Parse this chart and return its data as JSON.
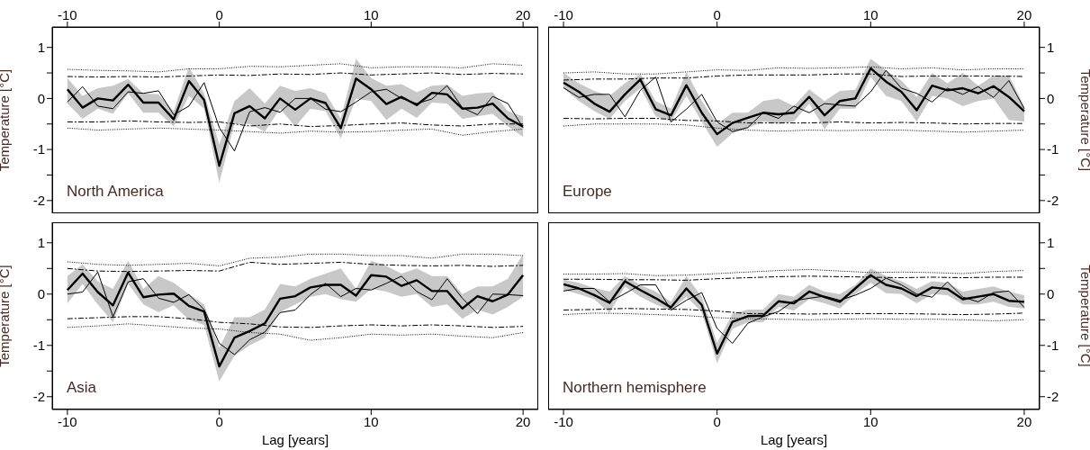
{
  "chart_data": [
    {
      "type": "line",
      "title": "North America",
      "ylabel": "Temperature [°C]",
      "xlim": [
        -11,
        21
      ],
      "x2lim": [
        -11,
        21
      ],
      "x2ticks": [
        -10,
        0,
        10,
        20
      ],
      "ylim": [
        -2.25,
        1.4
      ],
      "yticks": [
        -2,
        {
          "value": -1.5,
          "label": null
        },
        -1,
        {
          "value": -0.5,
          "label": null
        },
        0,
        {
          "value": 0.5,
          "label": null
        },
        1
      ],
      "x": [
        -10,
        -9,
        -8,
        -7,
        -6,
        -5,
        -4,
        -3,
        -2,
        -1,
        0,
        1,
        2,
        3,
        4,
        5,
        6,
        7,
        8,
        9,
        10,
        11,
        12,
        13,
        14,
        15,
        16,
        17,
        18,
        19,
        20
      ],
      "series": [
        {
          "color": "#000000",
          "values": [
            0.18,
            -0.18,
            0,
            -0.04,
            0.27,
            -0.08,
            -0.08,
            -0.41,
            0.34,
            -0.03,
            -1.32,
            -0.29,
            -0.15,
            -0.39,
            0,
            -0.22,
            0,
            -0.09,
            -0.58,
            0.39,
            0.18,
            -0.11,
            0.03,
            -0.13,
            0.11,
            0.08,
            -0.2,
            -0.18,
            -0.1,
            -0.39,
            -0.55
          ],
          "lower": [
            -0.1,
            -0.4,
            -0.2,
            -0.3,
            0.1,
            -0.28,
            -0.28,
            -0.55,
            0.05,
            -0.2,
            -1.65,
            -0.5,
            -0.5,
            -0.65,
            -0.2,
            -0.55,
            -0.2,
            -0.25,
            -0.78,
            0.0,
            -0.05,
            -0.42,
            -0.2,
            -0.38,
            -0.08,
            -0.1,
            -0.4,
            -0.35,
            -0.3,
            -0.55,
            -0.75
          ],
          "upper": [
            0.4,
            0.05,
            0.2,
            0.25,
            0.38,
            0.1,
            0.08,
            -0.25,
            0.62,
            0.1,
            -0.9,
            -0.05,
            0.2,
            -0.1,
            0.25,
            0.15,
            0.2,
            0.1,
            -0.4,
            0.78,
            0.4,
            0.25,
            0.28,
            0.12,
            0.25,
            0.27,
            0.05,
            0.1,
            0.12,
            -0.25,
            -0.35
          ]
        },
        {
          "color": "#000000",
          "values": [
            -0.07,
            0.23,
            -0.15,
            -0.2,
            0.13,
            0.1,
            0.15,
            -0.32,
            -0.15,
            0.31,
            -0.57,
            -1.03,
            -0.26,
            -0.18,
            -0.27,
            0,
            0,
            -0.21,
            -0.26,
            -0.07,
            0.13,
            0.18,
            0,
            -0.1,
            -0.01,
            0.25,
            -0.18,
            -0.32,
            0.04,
            -0.1,
            -0.57
          ]
        },
        {
          "color": "#000000",
          "line_style": "dashed",
          "x": [
            -10,
            -8,
            -6,
            -4,
            -2,
            0,
            2,
            4,
            6,
            8,
            10,
            12,
            14,
            16,
            18,
            20
          ],
          "values": [
            0.43,
            0.42,
            0.43,
            0.42,
            0.44,
            0.46,
            0.45,
            0.48,
            0.47,
            0.5,
            0.46,
            0.48,
            0.5,
            0.47,
            0.49,
            0.48
          ]
        },
        {
          "color": "#000000",
          "line_style": "dashed",
          "x": [
            -10,
            -8,
            -6,
            -4,
            -2,
            0,
            2,
            4,
            6,
            8,
            10,
            12,
            14,
            16,
            18,
            20
          ],
          "values": [
            -0.46,
            -0.46,
            -0.44,
            -0.46,
            -0.47,
            -0.46,
            -0.54,
            -0.5,
            -0.55,
            -0.53,
            -0.5,
            -0.48,
            -0.52,
            -0.54,
            -0.5,
            -0.5
          ]
        },
        {
          "color": "#000000",
          "line_style": "dotted",
          "x": [
            -10,
            -8,
            -6,
            -4,
            -2,
            0,
            2,
            4,
            6,
            8,
            10,
            12,
            14,
            16,
            18,
            20
          ],
          "values": [
            0.57,
            0.55,
            0.54,
            0.52,
            0.58,
            0.58,
            0.63,
            0.62,
            0.65,
            0.68,
            0.6,
            0.62,
            0.62,
            0.6,
            0.68,
            0.65
          ]
        },
        {
          "color": "#000000",
          "line_style": "dotted",
          "x": [
            -10,
            -8,
            -6,
            -4,
            -2,
            0,
            2,
            4,
            6,
            8,
            10,
            12,
            14,
            16,
            18,
            20
          ],
          "values": [
            -0.58,
            -0.62,
            -0.6,
            -0.58,
            -0.6,
            -0.62,
            -0.65,
            -0.68,
            -0.64,
            -0.66,
            -0.65,
            -0.62,
            -0.6,
            -0.72,
            -0.65,
            -0.6
          ]
        }
      ]
    },
    {
      "type": "line",
      "title": "Europe",
      "y2label": "Temperature [°C]",
      "xlim": [
        -11,
        21
      ],
      "x2lim": [
        -11,
        21
      ],
      "x2ticks": [
        -10,
        0,
        10,
        20
      ],
      "y2lim": [
        -2.25,
        1.4
      ],
      "y2ticks": [
        -2,
        {
          "value": -1.5,
          "label": null
        },
        -1,
        {
          "value": -0.5,
          "label": null
        },
        0,
        {
          "value": 0.5,
          "label": null
        },
        1
      ],
      "x": [
        -10,
        -9,
        -8,
        -7,
        -6,
        -5,
        -4,
        -3,
        -2,
        -1,
        0,
        1,
        2,
        3,
        4,
        5,
        6,
        7,
        8,
        9,
        10,
        11,
        12,
        13,
        14,
        15,
        16,
        17,
        18,
        19,
        20
      ],
      "series": [
        {
          "color": "#000000",
          "axis": "y2",
          "values": [
            0.31,
            0.13,
            -0.1,
            -0.26,
            0.08,
            0.37,
            -0.21,
            -0.33,
            0.26,
            -0.28,
            -0.7,
            -0.48,
            -0.38,
            -0.28,
            -0.31,
            -0.28,
            0.03,
            -0.33,
            -0.05,
            0,
            0.59,
            0.33,
            0.13,
            -0.23,
            0.25,
            0.16,
            0.2,
            0.1,
            0.24,
            0.03,
            -0.25
          ],
          "lower": [
            0.2,
            -0.05,
            -0.25,
            -0.4,
            -0.05,
            0.2,
            -0.35,
            -0.45,
            0.05,
            -0.45,
            -0.95,
            -0.68,
            -0.58,
            -0.45,
            -0.5,
            -0.45,
            -0.1,
            -0.6,
            -0.2,
            -0.2,
            0.42,
            0.05,
            -0.05,
            -0.45,
            0.05,
            0.0,
            -0.15,
            -0.05,
            0.0,
            -0.42,
            -0.45
          ],
          "upper": [
            0.5,
            0.3,
            0.15,
            0.05,
            0.3,
            0.48,
            -0.05,
            -0.2,
            0.52,
            -0.05,
            -0.5,
            -0.28,
            -0.28,
            -0.05,
            0.0,
            -0.15,
            0.18,
            -0.05,
            0.15,
            0.17,
            0.78,
            0.55,
            0.35,
            0.03,
            0.5,
            0.3,
            0.5,
            0.25,
            0.45,
            0.45,
            -0.15
          ]
        },
        {
          "color": "#000000",
          "axis": "y2",
          "values": [
            0.21,
            0.02,
            0.08,
            0.08,
            -0.36,
            0.16,
            0.42,
            -0.46,
            -0.21,
            0.08,
            -0.46,
            -0.65,
            -0.57,
            -0.28,
            -0.39,
            -0.15,
            -0.28,
            -0.1,
            -0.13,
            -0.15,
            0.13,
            0.55,
            0.2,
            0.1,
            -0.07,
            0.2,
            0.08,
            0.23,
            0.02,
            0.35,
            -0.2
          ]
        },
        {
          "color": "#000000",
          "axis": "y2",
          "line_style": "dashed",
          "x": [
            -10,
            -8,
            -6,
            -4,
            -2,
            0,
            2,
            4,
            6,
            8,
            10,
            12,
            14,
            16,
            18,
            20
          ],
          "values": [
            0.36,
            0.38,
            0.38,
            0.4,
            0.4,
            0.44,
            0.46,
            0.46,
            0.46,
            0.48,
            0.48,
            0.43,
            0.44,
            0.44,
            0.44,
            0.43
          ]
        },
        {
          "color": "#000000",
          "axis": "y2",
          "line_style": "dashed",
          "x": [
            -10,
            -8,
            -6,
            -4,
            -2,
            0,
            2,
            4,
            6,
            8,
            10,
            12,
            14,
            16,
            18,
            20
          ],
          "values": [
            -0.39,
            -0.4,
            -0.39,
            -0.39,
            -0.43,
            -0.44,
            -0.48,
            -0.48,
            -0.48,
            -0.46,
            -0.48,
            -0.47,
            -0.48,
            -0.5,
            -0.49,
            -0.49
          ]
        },
        {
          "color": "#000000",
          "axis": "y2",
          "line_style": "dotted",
          "x": [
            -10,
            -8,
            -6,
            -4,
            -2,
            0,
            2,
            4,
            6,
            8,
            10,
            12,
            14,
            16,
            18,
            20
          ],
          "values": [
            0.5,
            0.52,
            0.48,
            0.48,
            0.52,
            0.56,
            0.55,
            0.6,
            0.59,
            0.6,
            0.62,
            0.58,
            0.6,
            0.56,
            0.58,
            0.58
          ]
        },
        {
          "color": "#000000",
          "axis": "y2",
          "line_style": "dotted",
          "x": [
            -10,
            -8,
            -6,
            -4,
            -2,
            0,
            2,
            4,
            6,
            8,
            10,
            12,
            14,
            16,
            18,
            20
          ],
          "values": [
            -0.54,
            -0.5,
            -0.5,
            -0.5,
            -0.52,
            -0.58,
            -0.62,
            -0.64,
            -0.62,
            -0.63,
            -0.62,
            -0.62,
            -0.64,
            -0.66,
            -0.64,
            -0.62
          ]
        }
      ]
    },
    {
      "type": "line",
      "title": "Asia",
      "ylabel": "Temperature [°C]",
      "xlabel": "Lag [years]",
      "xlim": [
        -11,
        21
      ],
      "xticks": [
        -10,
        0,
        10,
        20
      ],
      "ylim": [
        -2.25,
        1.4
      ],
      "yticks": [
        -2,
        {
          "value": -1.5,
          "label": null
        },
        -1,
        {
          "value": -0.5,
          "label": null
        },
        0,
        {
          "value": 0.5,
          "label": null
        },
        1
      ],
      "x": [
        -10,
        -9,
        -8,
        -7,
        -6,
        -5,
        -4,
        -3,
        -2,
        -1,
        0,
        1,
        2,
        3,
        4,
        5,
        6,
        7,
        8,
        9,
        10,
        11,
        12,
        13,
        14,
        15,
        16,
        17,
        18,
        19,
        20
      ],
      "series": [
        {
          "color": "#000000",
          "values": [
            0.08,
            0.4,
            0.04,
            -0.22,
            0.42,
            -0.06,
            -0.01,
            0.01,
            -0.23,
            -0.34,
            -1.41,
            -0.85,
            -0.72,
            -0.57,
            -0.09,
            -0.04,
            0.13,
            0.18,
            0.18,
            -0.03,
            0.37,
            0.34,
            0.16,
            0.27,
            0.06,
            0.06,
            -0.28,
            -0.04,
            -0.14,
            -0.01,
            0.37
          ],
          "lower": [
            -0.18,
            0.2,
            -0.2,
            -0.55,
            0.2,
            -0.2,
            -0.35,
            -0.22,
            -0.5,
            -0.6,
            -1.7,
            -1.2,
            -1.0,
            -0.85,
            -0.35,
            -0.2,
            -0.05,
            0.0,
            -0.1,
            -0.15,
            0.1,
            0.05,
            -0.05,
            0.0,
            -0.25,
            -0.2,
            -0.48,
            -0.3,
            -0.4,
            -0.25,
            -0.05
          ],
          "upper": [
            0.35,
            0.58,
            0.25,
            0.1,
            0.65,
            0.1,
            0.35,
            0.22,
            0.0,
            -0.2,
            -1.05,
            -0.45,
            -0.45,
            -0.3,
            0.2,
            0.15,
            0.3,
            0.4,
            0.5,
            0.1,
            0.65,
            0.55,
            0.4,
            0.5,
            0.35,
            0.35,
            0.0,
            0.15,
            0.15,
            0.3,
            0.78
          ]
        },
        {
          "color": "#000000",
          "values": [
            0,
            0.04,
            0.43,
            -0.44,
            0.24,
            0.3,
            -0.08,
            -0.16,
            -0.01,
            -0.3,
            -0.96,
            -1.18,
            -0.89,
            -0.74,
            -0.36,
            -0.31,
            -0.01,
            0.21,
            -0.05,
            0.11,
            0.08,
            0.21,
            0.35,
            0.05,
            -0.11,
            0.3,
            -0.08,
            -0.38,
            0,
            -0.01,
            -0.03
          ]
        },
        {
          "color": "#000000",
          "line_style": "dashed",
          "x": [
            -10,
            -8,
            -6,
            -4,
            -2,
            0,
            2,
            4,
            6,
            8,
            10,
            12,
            14,
            16,
            18,
            20
          ],
          "values": [
            0.5,
            0.45,
            0.44,
            0.45,
            0.46,
            0.45,
            0.62,
            0.58,
            0.6,
            0.62,
            0.58,
            0.56,
            0.55,
            0.56,
            0.54,
            0.56
          ]
        },
        {
          "color": "#000000",
          "line_style": "dashed",
          "x": [
            -10,
            -8,
            -6,
            -4,
            -2,
            0,
            2,
            4,
            6,
            8,
            10,
            12,
            14,
            16,
            18,
            20
          ],
          "values": [
            -0.48,
            -0.46,
            -0.44,
            -0.44,
            -0.48,
            -0.55,
            -0.58,
            -0.64,
            -0.65,
            -0.62,
            -0.6,
            -0.62,
            -0.6,
            -0.62,
            -0.65,
            -0.63
          ]
        },
        {
          "color": "#000000",
          "line_style": "dotted",
          "x": [
            -10,
            -8,
            -6,
            -4,
            -2,
            0,
            2,
            4,
            6,
            8,
            10,
            12,
            14,
            16,
            18,
            20
          ],
          "values": [
            0.63,
            0.58,
            0.56,
            0.58,
            0.6,
            0.55,
            0.7,
            0.72,
            0.78,
            0.78,
            0.75,
            0.75,
            0.7,
            0.78,
            0.78,
            0.75
          ]
        },
        {
          "color": "#000000",
          "line_style": "dotted",
          "x": [
            -10,
            -8,
            -6,
            -4,
            -2,
            0,
            2,
            4,
            6,
            8,
            10,
            12,
            14,
            16,
            18,
            20
          ],
          "values": [
            -0.65,
            -0.62,
            -0.58,
            -0.62,
            -0.66,
            -0.68,
            -0.75,
            -0.78,
            -0.9,
            -0.85,
            -0.78,
            -0.8,
            -0.78,
            -0.82,
            -0.85,
            -0.75
          ]
        }
      ]
    },
    {
      "type": "line",
      "title": "Northern hemisphere",
      "y2label": "Temperature [°C]",
      "xlabel": "Lag [years]",
      "xlim": [
        -11,
        21
      ],
      "xticks": [
        -10,
        0,
        10,
        20
      ],
      "y2lim": [
        -2.25,
        1.4
      ],
      "y2ticks": [
        -2,
        {
          "value": -1.5,
          "label": null
        },
        -1,
        {
          "value": -0.5,
          "label": null
        },
        0,
        {
          "value": 0.5,
          "label": null
        },
        1
      ],
      "x": [
        -10,
        -9,
        -8,
        -7,
        -6,
        -5,
        -4,
        -3,
        -2,
        -1,
        0,
        1,
        2,
        3,
        4,
        5,
        6,
        7,
        8,
        9,
        10,
        11,
        12,
        13,
        14,
        15,
        16,
        17,
        18,
        19,
        20
      ],
      "series": [
        {
          "color": "#000000",
          "axis": "y2",
          "values": [
            0.19,
            0.11,
            -0.02,
            -0.17,
            0.25,
            0.08,
            -0.08,
            -0.26,
            0.11,
            -0.21,
            -1.16,
            -0.54,
            -0.43,
            -0.42,
            -0.14,
            -0.18,
            0.05,
            -0.06,
            -0.15,
            0.11,
            0.37,
            0.18,
            0.11,
            -0.04,
            0.13,
            0.1,
            -0.1,
            -0.05,
            0,
            -0.13,
            -0.15
          ],
          "lower": [
            0.08,
            0.0,
            -0.1,
            -0.37,
            0.15,
            -0.05,
            -0.2,
            -0.33,
            -0.05,
            -0.35,
            -1.35,
            -0.68,
            -0.55,
            -0.55,
            -0.25,
            -0.32,
            -0.1,
            -0.18,
            -0.28,
            0.0,
            0.22,
            0.02,
            0.0,
            -0.18,
            0.0,
            -0.02,
            -0.2,
            -0.2,
            -0.15,
            -0.25,
            -0.28
          ],
          "upper": [
            0.28,
            0.22,
            0.12,
            0.05,
            0.35,
            0.18,
            0.05,
            -0.15,
            0.35,
            -0.05,
            -0.95,
            -0.38,
            -0.3,
            -0.3,
            0.0,
            -0.05,
            0.18,
            0.05,
            0.0,
            0.18,
            0.5,
            0.35,
            0.25,
            0.1,
            0.25,
            0.22,
            0.05,
            0.1,
            0.15,
            0.05,
            -0.02
          ]
        },
        {
          "color": "#000000",
          "axis": "y2",
          "values": [
            0.06,
            0.11,
            0.11,
            -0.15,
            0.01,
            0.18,
            0.18,
            -0.31,
            -0.12,
            0.03,
            -0.67,
            -0.96,
            -0.57,
            -0.44,
            -0.34,
            -0.13,
            -0.08,
            -0.04,
            -0.12,
            -0.02,
            0.11,
            0.31,
            0.18,
            0,
            -0.06,
            0.24,
            -0.06,
            -0.15,
            0.03,
            0.06,
            -0.26
          ]
        },
        {
          "color": "#000000",
          "axis": "y2",
          "line_style": "dashed",
          "x": [
            -10,
            -8,
            -6,
            -4,
            -2,
            0,
            2,
            4,
            6,
            8,
            10,
            12,
            14,
            16,
            18,
            20
          ],
          "values": [
            0.29,
            0.29,
            0.28,
            0.28,
            0.27,
            0.3,
            0.32,
            0.34,
            0.35,
            0.34,
            0.33,
            0.32,
            0.33,
            0.32,
            0.33,
            0.33
          ]
        },
        {
          "color": "#000000",
          "axis": "y2",
          "line_style": "dashed",
          "x": [
            -10,
            -8,
            -6,
            -4,
            -2,
            0,
            2,
            4,
            6,
            8,
            10,
            12,
            14,
            16,
            18,
            20
          ],
          "values": [
            -0.31,
            -0.3,
            -0.28,
            -0.29,
            -0.3,
            -0.33,
            -0.38,
            -0.38,
            -0.39,
            -0.38,
            -0.38,
            -0.38,
            -0.39,
            -0.4,
            -0.39,
            -0.37
          ]
        },
        {
          "color": "#000000",
          "axis": "y2",
          "line_style": "dotted",
          "x": [
            -10,
            -8,
            -6,
            -4,
            -2,
            0,
            2,
            4,
            6,
            8,
            10,
            12,
            14,
            16,
            18,
            20
          ],
          "values": [
            0.39,
            0.39,
            0.4,
            0.36,
            0.37,
            0.4,
            0.43,
            0.46,
            0.48,
            0.45,
            0.42,
            0.43,
            0.42,
            0.4,
            0.44,
            0.46
          ]
        },
        {
          "color": "#000000",
          "axis": "y2",
          "line_style": "dotted",
          "x": [
            -10,
            -8,
            -6,
            -4,
            -2,
            0,
            2,
            4,
            6,
            8,
            10,
            12,
            14,
            16,
            18,
            20
          ],
          "values": [
            -0.4,
            -0.37,
            -0.38,
            -0.4,
            -0.42,
            -0.46,
            -0.48,
            -0.49,
            -0.5,
            -0.49,
            -0.48,
            -0.49,
            -0.49,
            -0.5,
            -0.52,
            -0.5
          ]
        }
      ]
    }
  ]
}
